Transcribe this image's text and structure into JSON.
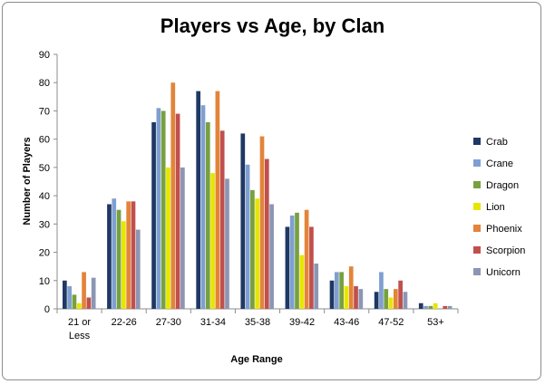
{
  "chart_data": {
    "type": "bar",
    "title": "Players vs Age, by Clan",
    "xlabel": "Age Range",
    "ylabel": "Number of Players",
    "ylim": [
      0,
      90
    ],
    "yticks": [
      0,
      10,
      20,
      30,
      40,
      50,
      60,
      70,
      80,
      90
    ],
    "grid": false,
    "legend_position": "right",
    "categories": [
      "21 or\nLess",
      "22-26",
      "27-30",
      "31-34",
      "35-38",
      "39-42",
      "43-46",
      "47-52",
      "53+"
    ],
    "series": [
      {
        "name": "Crab",
        "color": "#1f3864",
        "values": [
          10,
          37,
          66,
          77,
          62,
          29,
          10,
          6,
          2
        ]
      },
      {
        "name": "Crane",
        "color": "#7f9fd0",
        "values": [
          8,
          39,
          71,
          72,
          51,
          33,
          13,
          13,
          1
        ]
      },
      {
        "name": "Dragon",
        "color": "#77a03f",
        "values": [
          5,
          35,
          70,
          66,
          42,
          34,
          13,
          7,
          1
        ]
      },
      {
        "name": "Lion",
        "color": "#e6e600",
        "values": [
          2,
          31,
          50,
          48,
          39,
          19,
          8,
          4,
          2
        ]
      },
      {
        "name": "Phoenix",
        "color": "#e3843a",
        "values": [
          13,
          38,
          80,
          77,
          61,
          35,
          15,
          7,
          0
        ]
      },
      {
        "name": "Scorpion",
        "color": "#c0504d",
        "values": [
          4,
          38,
          69,
          63,
          53,
          29,
          8,
          10,
          1
        ]
      },
      {
        "name": "Unicorn",
        "color": "#8c96b4",
        "values": [
          11,
          28,
          50,
          46,
          37,
          16,
          7,
          6,
          1
        ]
      }
    ]
  }
}
